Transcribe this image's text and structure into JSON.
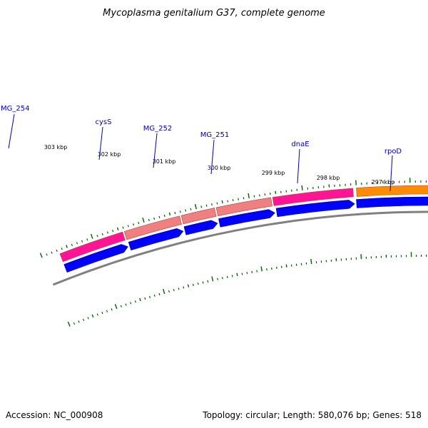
{
  "title": "Mycoplasma genitalium G37, complete genome",
  "footer": {
    "accession": "Accession: NC_000908",
    "summary": "Topology: circular; Length: 580,076 bp; Genes: 518"
  },
  "scale_labels": [
    "303 kbp",
    "302 kbp",
    "301 kbp",
    "300 kbp",
    "299 kbp",
    "298 kbp",
    "297 kbp"
  ],
  "gene_labels": [
    "MG_254",
    "cysS",
    "MG_252",
    "MG_251",
    "dnaE",
    "rpoD"
  ],
  "colors": {
    "feature_magenta": "#ff1493",
    "feature_pink": "#f08080",
    "feature_orange": "#ff8c00",
    "cds_blue": "#0000ff",
    "backbone": "#808080",
    "tick": "#006400",
    "label": "#0000b0"
  }
}
